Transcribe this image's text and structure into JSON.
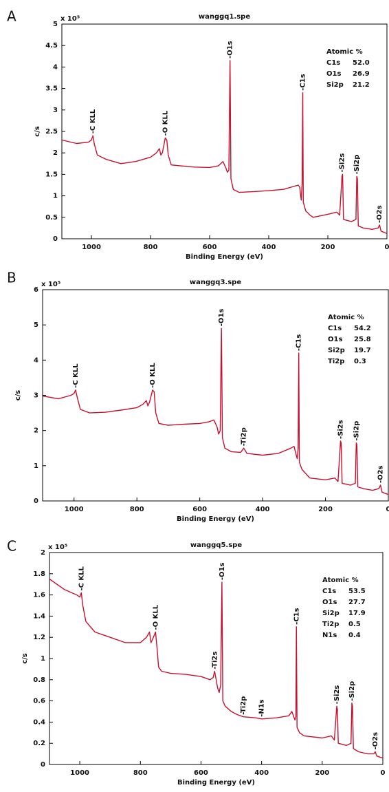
{
  "chart_data": [
    {
      "type": "line",
      "panel_label": "A",
      "title": "wanggq1.spe",
      "y_multiplier": "x 10⁵",
      "x_label": "Binding Energy (eV)",
      "y_label": "c/s",
      "color": "#c8102e",
      "xlim": [
        1100,
        0
      ],
      "xticks": [
        1000,
        800,
        600,
        400,
        200,
        0
      ],
      "ylim": [
        0,
        5
      ],
      "yticks": [
        0,
        0.5,
        1,
        1.5,
        2,
        2.5,
        3,
        3.5,
        4,
        4.5,
        5
      ],
      "x": [
        1100,
        1050,
        1010,
        1000,
        995,
        990,
        980,
        950,
        900,
        850,
        800,
        780,
        770,
        765,
        760,
        750,
        745,
        740,
        730,
        700,
        650,
        600,
        570,
        555,
        545,
        540,
        535,
        531,
        528,
        520,
        500,
        450,
        400,
        350,
        300,
        295,
        290,
        287,
        285,
        283,
        275,
        260,
        250,
        200,
        170,
        160,
        152,
        150,
        147,
        120,
        105,
        102,
        100,
        97,
        80,
        50,
        30,
        25,
        20,
        0
      ],
      "values": [
        2.3,
        2.22,
        2.25,
        2.3,
        2.4,
        2.2,
        1.95,
        1.85,
        1.75,
        1.8,
        1.9,
        2.0,
        2.1,
        1.95,
        2.0,
        2.35,
        2.3,
        1.95,
        1.72,
        1.7,
        1.67,
        1.66,
        1.7,
        1.8,
        1.65,
        1.55,
        1.6,
        4.15,
        1.4,
        1.15,
        1.08,
        1.1,
        1.12,
        1.15,
        1.25,
        1.2,
        0.9,
        1.3,
        3.4,
        0.85,
        0.65,
        0.55,
        0.5,
        0.57,
        0.62,
        0.55,
        1.45,
        1.5,
        0.45,
        0.4,
        0.45,
        1.45,
        1.4,
        0.3,
        0.25,
        0.22,
        0.25,
        0.32,
        0.18,
        0.12
      ],
      "annotations": [
        {
          "text": "-C KLL",
          "x": 995
        },
        {
          "text": "-O KLL",
          "x": 750
        },
        {
          "text": "-O1s",
          "x": 531
        },
        {
          "text": "-C1s",
          "x": 285
        },
        {
          "text": "-Si2s",
          "x": 152
        },
        {
          "text": "-Si2p",
          "x": 102
        },
        {
          "text": "-O2s",
          "x": 25
        }
      ],
      "composition": {
        "title": "Atomic %",
        "rows": [
          [
            "C1s",
            "52.0"
          ],
          [
            "O1s",
            "26.9"
          ],
          [
            "Si2p",
            "21.2"
          ]
        ]
      }
    },
    {
      "type": "line",
      "panel_label": "B",
      "title": "wanggq3.spe",
      "y_multiplier": "x 10⁵",
      "x_label": "Binding Energy (eV)",
      "y_label": "c/s",
      "color": "#c8102e",
      "xlim": [
        1100,
        0
      ],
      "xticks": [
        1000,
        800,
        600,
        400,
        200,
        0
      ],
      "ylim": [
        0,
        6
      ],
      "yticks": [
        0,
        1,
        2,
        3,
        4,
        5,
        6
      ],
      "x": [
        1100,
        1050,
        1010,
        1000,
        995,
        990,
        980,
        950,
        900,
        850,
        800,
        780,
        770,
        765,
        760,
        750,
        745,
        740,
        730,
        700,
        650,
        600,
        570,
        555,
        545,
        540,
        535,
        531,
        528,
        520,
        500,
        470,
        460,
        450,
        400,
        350,
        310,
        300,
        290,
        287,
        285,
        283,
        275,
        260,
        250,
        200,
        170,
        160,
        152,
        150,
        147,
        120,
        105,
        102,
        100,
        97,
        80,
        50,
        30,
        25,
        20,
        0
      ],
      "values": [
        2.98,
        2.9,
        3.0,
        3.05,
        3.15,
        2.95,
        2.6,
        2.5,
        2.52,
        2.58,
        2.65,
        2.75,
        2.85,
        2.7,
        2.8,
        3.15,
        3.1,
        2.5,
        2.2,
        2.15,
        2.18,
        2.2,
        2.25,
        2.3,
        2.1,
        1.9,
        2.0,
        4.9,
        1.8,
        1.5,
        1.4,
        1.38,
        1.5,
        1.35,
        1.3,
        1.35,
        1.5,
        1.55,
        1.2,
        1.5,
        4.2,
        1.1,
        0.9,
        0.75,
        0.65,
        0.6,
        0.65,
        0.55,
        1.7,
        1.65,
        0.5,
        0.45,
        0.5,
        1.65,
        1.6,
        0.4,
        0.35,
        0.3,
        0.35,
        0.45,
        0.25,
        0.18
      ],
      "annotations": [
        {
          "text": "-C KLL",
          "x": 995
        },
        {
          "text": "-O KLL",
          "x": 750
        },
        {
          "text": "-O1s",
          "x": 531
        },
        {
          "text": "-Ti2p",
          "x": 460
        },
        {
          "text": "-C1s",
          "x": 285
        },
        {
          "text": "-Si2s",
          "x": 152
        },
        {
          "text": "-Si2p",
          "x": 102
        },
        {
          "text": "-O2s",
          "x": 25
        }
      ],
      "composition": {
        "title": "Atomic %",
        "rows": [
          [
            "C1s",
            "54.2"
          ],
          [
            "O1s",
            "25.8"
          ],
          [
            "Si2p",
            "19.7"
          ],
          [
            "Ti2p",
            "0.3"
          ]
        ]
      }
    },
    {
      "type": "line",
      "panel_label": "C",
      "title": "wanggq5.spe",
      "y_multiplier": "x 10⁵",
      "x_label": "Binding Energy (eV)",
      "y_label": "c/s",
      "color": "#c8102e",
      "xlim": [
        1100,
        0
      ],
      "xticks": [
        1000,
        800,
        600,
        400,
        200,
        0
      ],
      "ylim": [
        0,
        2
      ],
      "yticks": [
        0,
        0.2,
        0.4,
        0.6,
        0.8,
        1,
        1.2,
        1.4,
        1.6,
        1.8,
        2
      ],
      "x": [
        1100,
        1050,
        1010,
        1000,
        995,
        990,
        980,
        950,
        900,
        850,
        800,
        780,
        770,
        765,
        760,
        750,
        745,
        740,
        730,
        700,
        650,
        600,
        570,
        560,
        555,
        545,
        540,
        535,
        531,
        528,
        520,
        500,
        480,
        460,
        420,
        400,
        350,
        310,
        300,
        290,
        287,
        285,
        283,
        275,
        260,
        200,
        170,
        160,
        152,
        150,
        147,
        120,
        105,
        102,
        100,
        97,
        80,
        50,
        30,
        25,
        20,
        0
      ],
      "values": [
        1.75,
        1.65,
        1.6,
        1.58,
        1.62,
        1.5,
        1.35,
        1.25,
        1.2,
        1.15,
        1.15,
        1.2,
        1.25,
        1.15,
        1.18,
        1.25,
        1.1,
        0.92,
        0.88,
        0.86,
        0.85,
        0.83,
        0.8,
        0.82,
        0.88,
        0.72,
        0.68,
        0.75,
        1.72,
        0.6,
        0.55,
        0.5,
        0.47,
        0.45,
        0.44,
        0.43,
        0.44,
        0.46,
        0.5,
        0.42,
        0.45,
        1.3,
        0.35,
        0.3,
        0.27,
        0.25,
        0.27,
        0.23,
        0.55,
        0.52,
        0.2,
        0.18,
        0.2,
        0.58,
        0.55,
        0.15,
        0.12,
        0.1,
        0.1,
        0.12,
        0.08,
        0.06
      ],
      "annotations": [
        {
          "text": "-C KLL",
          "x": 995
        },
        {
          "text": "-O KLL",
          "x": 750
        },
        {
          "text": "-Ti2s",
          "x": 555
        },
        {
          "text": "-O1s",
          "x": 531
        },
        {
          "text": "-Ti2p",
          "x": 460
        },
        {
          "text": "-N1s",
          "x": 400
        },
        {
          "text": "-C1s",
          "x": 285
        },
        {
          "text": "-Si2s",
          "x": 152
        },
        {
          "text": "-Si2p",
          "x": 102
        },
        {
          "text": "-O2s",
          "x": 25
        }
      ],
      "composition": {
        "title": "Atomic %",
        "rows": [
          [
            "C1s",
            "53.5"
          ],
          [
            "O1s",
            "27.7"
          ],
          [
            "Si2p",
            "17.9"
          ],
          [
            "Ti2p",
            "0.5"
          ],
          [
            "N1s",
            "0.4"
          ]
        ]
      }
    }
  ]
}
